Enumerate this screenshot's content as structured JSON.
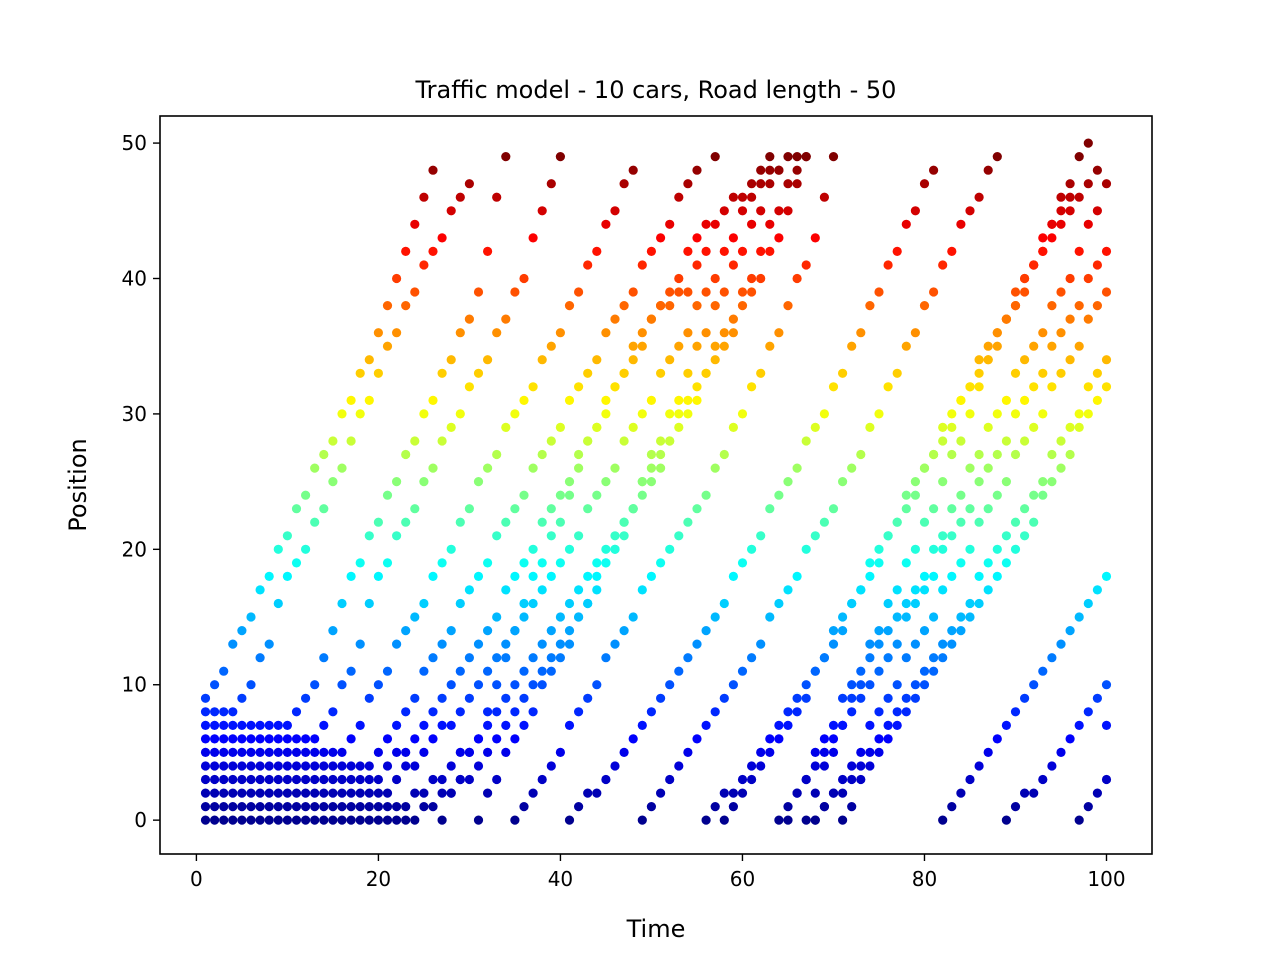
{
  "chart_data": {
    "type": "scatter",
    "title": "Traffic model - 10 cars, Road length - 50",
    "xlabel": "Time",
    "ylabel": "Position",
    "xlim": [
      -4,
      105
    ],
    "ylim": [
      -2.5,
      52
    ],
    "xticks": [
      0,
      20,
      40,
      60,
      80,
      100
    ],
    "yticks": [
      0,
      10,
      20,
      30,
      40,
      50
    ],
    "grid": false,
    "legend": "none",
    "colormap": "jet",
    "color_by": "position",
    "marker_color_stops": [
      "#00008f",
      "#0000ff",
      "#0080ff",
      "#00ffff",
      "#80ff80",
      "#ffff00",
      "#ff8000",
      "#ff0000",
      "#800000"
    ],
    "timesteps": [
      1,
      100
    ],
    "cars": [
      {
        "id": 1,
        "trajectory_keyframes": [
          [
            1,
            9
          ],
          [
            2,
            10
          ],
          [
            6,
            15
          ],
          [
            10,
            21
          ],
          [
            14,
            27
          ],
          [
            19,
            34
          ],
          [
            26,
            48
          ],
          [
            27,
            0
          ],
          [
            32,
            8
          ],
          [
            36,
            16
          ],
          [
            41,
            24
          ],
          [
            45,
            31
          ],
          [
            50,
            37
          ],
          [
            54,
            39
          ],
          [
            58,
            45
          ],
          [
            62,
            47
          ],
          [
            66,
            49
          ],
          [
            67,
            0
          ],
          [
            71,
            7
          ],
          [
            75,
            13
          ],
          [
            79,
            17
          ],
          [
            80,
            18
          ],
          [
            84,
            24
          ],
          [
            88,
            30
          ],
          [
            92,
            35
          ],
          [
            96,
            40
          ],
          [
            100,
            47
          ]
        ]
      },
      {
        "id": 2,
        "trajectory_keyframes": [
          [
            1,
            8
          ],
          [
            4,
            8
          ],
          [
            5,
            9
          ],
          [
            8,
            13
          ],
          [
            10,
            18
          ],
          [
            12,
            20
          ],
          [
            16,
            26
          ],
          [
            20,
            33
          ],
          [
            25,
            41
          ],
          [
            30,
            47
          ],
          [
            31,
            0
          ],
          [
            35,
            6
          ],
          [
            40,
            12
          ],
          [
            44,
            17
          ],
          [
            49,
            25
          ],
          [
            54,
            33
          ],
          [
            59,
            41
          ],
          [
            64,
            48
          ],
          [
            65,
            0
          ],
          [
            69,
            6
          ],
          [
            73,
            11
          ],
          [
            77,
            17
          ],
          [
            81,
            23
          ],
          [
            85,
            30
          ],
          [
            89,
            37
          ],
          [
            94,
            44
          ],
          [
            98,
            50
          ]
        ]
      },
      {
        "id": 3,
        "trajectory_keyframes": [
          [
            1,
            7
          ],
          [
            10,
            7
          ],
          [
            11,
            8
          ],
          [
            13,
            10
          ],
          [
            16,
            16
          ],
          [
            20,
            22
          ],
          [
            24,
            28
          ],
          [
            28,
            34
          ],
          [
            31,
            39
          ],
          [
            34,
            49
          ],
          [
            35,
            0
          ],
          [
            39,
            4
          ],
          [
            43,
            9
          ],
          [
            47,
            14
          ],
          [
            51,
            19
          ],
          [
            56,
            24
          ],
          [
            60,
            30
          ],
          [
            64,
            36
          ],
          [
            68,
            43
          ],
          [
            70,
            49
          ],
          [
            71,
            0
          ],
          [
            75,
            5
          ],
          [
            79,
            9
          ],
          [
            83,
            13
          ],
          [
            87,
            17
          ],
          [
            91,
            21
          ],
          [
            95,
            26
          ],
          [
            99,
            31
          ],
          [
            100,
            32
          ]
        ]
      },
      {
        "id": 4,
        "trajectory_keyframes": [
          [
            1,
            6
          ],
          [
            13,
            6
          ],
          [
            14,
            7
          ],
          [
            17,
            11
          ],
          [
            20,
            18
          ],
          [
            24,
            23
          ],
          [
            28,
            29
          ],
          [
            32,
            34
          ],
          [
            36,
            40
          ],
          [
            38,
            45
          ],
          [
            40,
            49
          ],
          [
            41,
            0
          ],
          [
            45,
            3
          ],
          [
            49,
            7
          ],
          [
            53,
            11
          ],
          [
            57,
            15
          ],
          [
            61,
            20
          ],
          [
            65,
            25
          ],
          [
            69,
            30
          ],
          [
            73,
            36
          ],
          [
            77,
            42
          ],
          [
            81,
            48
          ],
          [
            82,
            0
          ],
          [
            86,
            4
          ],
          [
            90,
            8
          ],
          [
            94,
            12
          ],
          [
            98,
            16
          ],
          [
            100,
            18
          ]
        ]
      },
      {
        "id": 5,
        "trajectory_keyframes": [
          [
            1,
            5
          ],
          [
            16,
            5
          ],
          [
            17,
            6
          ],
          [
            20,
            10
          ],
          [
            24,
            15
          ],
          [
            28,
            20
          ],
          [
            32,
            26
          ],
          [
            36,
            31
          ],
          [
            40,
            36
          ],
          [
            44,
            42
          ],
          [
            48,
            48
          ],
          [
            49,
            0
          ],
          [
            53,
            4
          ],
          [
            57,
            8
          ],
          [
            61,
            12
          ],
          [
            65,
            17
          ],
          [
            69,
            22
          ],
          [
            73,
            27
          ],
          [
            77,
            33
          ],
          [
            81,
            39
          ],
          [
            85,
            45
          ],
          [
            88,
            49
          ],
          [
            89,
            0
          ],
          [
            93,
            3
          ],
          [
            97,
            7
          ],
          [
            100,
            10
          ]
        ]
      },
      {
        "id": 6,
        "trajectory_keyframes": [
          [
            1,
            4
          ],
          [
            19,
            4
          ],
          [
            20,
            5
          ],
          [
            23,
            8
          ],
          [
            27,
            13
          ],
          [
            31,
            18
          ],
          [
            35,
            23
          ],
          [
            39,
            28
          ],
          [
            43,
            33
          ],
          [
            47,
            38
          ],
          [
            51,
            43
          ],
          [
            55,
            48
          ],
          [
            56,
            0
          ],
          [
            60,
            3
          ],
          [
            64,
            7
          ],
          [
            68,
            11
          ],
          [
            72,
            16
          ],
          [
            76,
            21
          ],
          [
            80,
            26
          ],
          [
            84,
            31
          ],
          [
            88,
            36
          ],
          [
            92,
            41
          ],
          [
            96,
            46
          ],
          [
            97,
            0
          ],
          [
            100,
            3
          ]
        ]
      },
      {
        "id": 7,
        "trajectory_keyframes": [
          [
            1,
            3
          ],
          [
            20,
            3
          ],
          [
            21,
            4
          ],
          [
            24,
            6
          ],
          [
            28,
            10
          ],
          [
            32,
            14
          ],
          [
            36,
            19
          ],
          [
            40,
            24
          ],
          [
            44,
            29
          ],
          [
            48,
            34
          ],
          [
            52,
            39
          ],
          [
            56,
            44
          ],
          [
            57,
            49
          ],
          [
            58,
            0
          ],
          [
            62,
            4
          ],
          [
            66,
            8
          ],
          [
            70,
            13
          ],
          [
            74,
            18
          ],
          [
            78,
            23
          ],
          [
            82,
            28
          ],
          [
            86,
            33
          ],
          [
            90,
            38
          ],
          [
            94,
            43
          ],
          [
            98,
            47
          ],
          [
            99,
            48
          ],
          [
            100,
            7
          ]
        ]
      },
      {
        "id": 8,
        "trajectory_keyframes": [
          [
            1,
            2
          ],
          [
            21,
            2
          ],
          [
            22,
            3
          ],
          [
            25,
            5
          ],
          [
            29,
            8
          ],
          [
            33,
            12
          ],
          [
            37,
            16
          ],
          [
            41,
            20
          ],
          [
            45,
            25
          ],
          [
            49,
            30
          ],
          [
            53,
            35
          ],
          [
            57,
            40
          ],
          [
            60,
            45
          ],
          [
            63,
            49
          ],
          [
            64,
            0
          ],
          [
            68,
            4
          ],
          [
            72,
            8
          ],
          [
            76,
            12
          ],
          [
            80,
            17
          ],
          [
            84,
            22
          ],
          [
            88,
            27
          ],
          [
            92,
            32
          ],
          [
            96,
            37
          ],
          [
            100,
            42
          ]
        ]
      },
      {
        "id": 9,
        "trajectory_keyframes": [
          [
            1,
            1
          ],
          [
            23,
            1
          ],
          [
            24,
            2
          ],
          [
            27,
            3
          ],
          [
            31,
            6
          ],
          [
            35,
            10
          ],
          [
            39,
            14
          ],
          [
            43,
            18
          ],
          [
            47,
            22
          ],
          [
            51,
            27
          ],
          [
            55,
            32
          ],
          [
            59,
            37
          ],
          [
            62,
            42
          ],
          [
            66,
            48
          ],
          [
            67,
            49
          ],
          [
            68,
            0
          ],
          [
            72,
            3
          ],
          [
            76,
            7
          ],
          [
            80,
            11
          ],
          [
            84,
            15
          ],
          [
            88,
            20
          ],
          [
            92,
            24
          ],
          [
            96,
            29
          ],
          [
            100,
            34
          ]
        ]
      },
      {
        "id": 10,
        "trajectory_keyframes": [
          [
            1,
            0
          ],
          [
            23,
            0
          ],
          [
            26,
            1
          ],
          [
            30,
            3
          ],
          [
            34,
            7
          ],
          [
            38,
            11
          ],
          [
            42,
            15
          ],
          [
            46,
            20
          ],
          [
            50,
            25
          ],
          [
            54,
            30
          ],
          [
            58,
            35
          ],
          [
            62,
            40
          ],
          [
            65,
            45
          ],
          [
            67,
            49
          ],
          [
            68,
            0
          ],
          [
            72,
            4
          ],
          [
            76,
            9
          ],
          [
            80,
            14
          ],
          [
            84,
            19
          ],
          [
            88,
            24
          ],
          [
            92,
            29
          ],
          [
            96,
            34
          ],
          [
            100,
            39
          ]
        ]
      }
    ]
  }
}
